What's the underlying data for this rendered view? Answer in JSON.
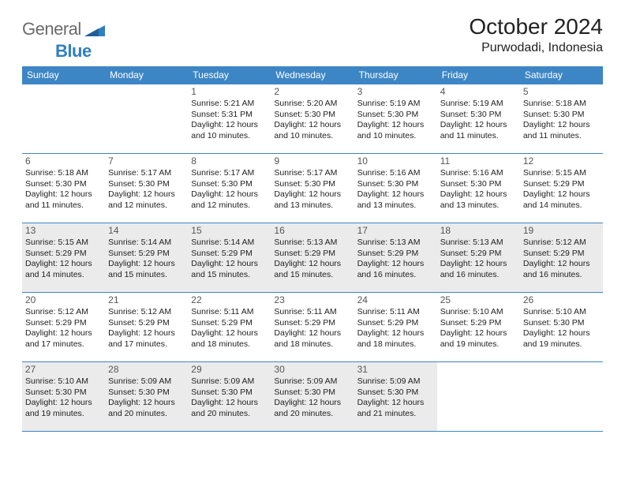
{
  "brand": {
    "word1": "General",
    "word2": "Blue"
  },
  "title": "October 2024",
  "location": "Purwodadi, Indonesia",
  "colors": {
    "header_bg": "#3d86c6",
    "header_fg": "#ffffff",
    "rule": "#3d86c6",
    "shade": "#ebebeb",
    "logo_gray": "#6b6b6b",
    "logo_blue": "#2f7fbf"
  },
  "day_headers": [
    "Sunday",
    "Monday",
    "Tuesday",
    "Wednesday",
    "Thursday",
    "Friday",
    "Saturday"
  ],
  "weeks": [
    [
      {
        "empty": true
      },
      {
        "empty": true
      },
      {
        "num": "1",
        "sr": "5:21 AM",
        "ss": "5:31 PM",
        "dl": "12 hours and 10 minutes."
      },
      {
        "num": "2",
        "sr": "5:20 AM",
        "ss": "5:30 PM",
        "dl": "12 hours and 10 minutes."
      },
      {
        "num": "3",
        "sr": "5:19 AM",
        "ss": "5:30 PM",
        "dl": "12 hours and 10 minutes."
      },
      {
        "num": "4",
        "sr": "5:19 AM",
        "ss": "5:30 PM",
        "dl": "12 hours and 11 minutes."
      },
      {
        "num": "5",
        "sr": "5:18 AM",
        "ss": "5:30 PM",
        "dl": "12 hours and 11 minutes."
      }
    ],
    [
      {
        "num": "6",
        "sr": "5:18 AM",
        "ss": "5:30 PM",
        "dl": "12 hours and 11 minutes."
      },
      {
        "num": "7",
        "sr": "5:17 AM",
        "ss": "5:30 PM",
        "dl": "12 hours and 12 minutes."
      },
      {
        "num": "8",
        "sr": "5:17 AM",
        "ss": "5:30 PM",
        "dl": "12 hours and 12 minutes."
      },
      {
        "num": "9",
        "sr": "5:17 AM",
        "ss": "5:30 PM",
        "dl": "12 hours and 13 minutes."
      },
      {
        "num": "10",
        "sr": "5:16 AM",
        "ss": "5:30 PM",
        "dl": "12 hours and 13 minutes."
      },
      {
        "num": "11",
        "sr": "5:16 AM",
        "ss": "5:30 PM",
        "dl": "12 hours and 13 minutes."
      },
      {
        "num": "12",
        "sr": "5:15 AM",
        "ss": "5:29 PM",
        "dl": "12 hours and 14 minutes."
      }
    ],
    [
      {
        "num": "13",
        "shade": true,
        "sr": "5:15 AM",
        "ss": "5:29 PM",
        "dl": "12 hours and 14 minutes."
      },
      {
        "num": "14",
        "shade": true,
        "sr": "5:14 AM",
        "ss": "5:29 PM",
        "dl": "12 hours and 15 minutes."
      },
      {
        "num": "15",
        "shade": true,
        "sr": "5:14 AM",
        "ss": "5:29 PM",
        "dl": "12 hours and 15 minutes."
      },
      {
        "num": "16",
        "shade": true,
        "sr": "5:13 AM",
        "ss": "5:29 PM",
        "dl": "12 hours and 15 minutes."
      },
      {
        "num": "17",
        "shade": true,
        "sr": "5:13 AM",
        "ss": "5:29 PM",
        "dl": "12 hours and 16 minutes."
      },
      {
        "num": "18",
        "shade": true,
        "sr": "5:13 AM",
        "ss": "5:29 PM",
        "dl": "12 hours and 16 minutes."
      },
      {
        "num": "19",
        "shade": true,
        "sr": "5:12 AM",
        "ss": "5:29 PM",
        "dl": "12 hours and 16 minutes."
      }
    ],
    [
      {
        "num": "20",
        "sr": "5:12 AM",
        "ss": "5:29 PM",
        "dl": "12 hours and 17 minutes."
      },
      {
        "num": "21",
        "sr": "5:12 AM",
        "ss": "5:29 PM",
        "dl": "12 hours and 17 minutes."
      },
      {
        "num": "22",
        "sr": "5:11 AM",
        "ss": "5:29 PM",
        "dl": "12 hours and 18 minutes."
      },
      {
        "num": "23",
        "sr": "5:11 AM",
        "ss": "5:29 PM",
        "dl": "12 hours and 18 minutes."
      },
      {
        "num": "24",
        "sr": "5:11 AM",
        "ss": "5:29 PM",
        "dl": "12 hours and 18 minutes."
      },
      {
        "num": "25",
        "sr": "5:10 AM",
        "ss": "5:29 PM",
        "dl": "12 hours and 19 minutes."
      },
      {
        "num": "26",
        "sr": "5:10 AM",
        "ss": "5:30 PM",
        "dl": "12 hours and 19 minutes."
      }
    ],
    [
      {
        "num": "27",
        "shade": true,
        "sr": "5:10 AM",
        "ss": "5:30 PM",
        "dl": "12 hours and 19 minutes."
      },
      {
        "num": "28",
        "shade": true,
        "sr": "5:09 AM",
        "ss": "5:30 PM",
        "dl": "12 hours and 20 minutes."
      },
      {
        "num": "29",
        "shade": true,
        "sr": "5:09 AM",
        "ss": "5:30 PM",
        "dl": "12 hours and 20 minutes."
      },
      {
        "num": "30",
        "shade": true,
        "sr": "5:09 AM",
        "ss": "5:30 PM",
        "dl": "12 hours and 20 minutes."
      },
      {
        "num": "31",
        "shade": true,
        "sr": "5:09 AM",
        "ss": "5:30 PM",
        "dl": "12 hours and 21 minutes."
      },
      {
        "empty": true
      },
      {
        "empty": true
      }
    ]
  ],
  "labels": {
    "sunrise": "Sunrise:",
    "sunset": "Sunset:",
    "daylight": "Daylight:"
  }
}
